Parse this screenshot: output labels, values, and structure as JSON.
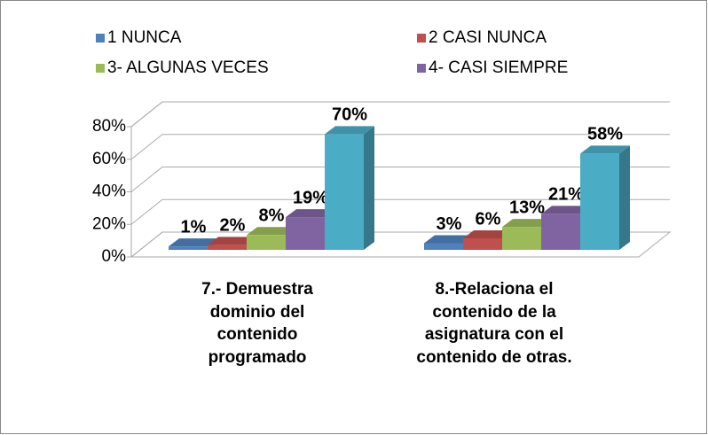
{
  "chart_data": {
    "type": "bar3d",
    "categories": [
      "7.- Demuestra dominio del contenido programado",
      "8.-Relaciona el contenido de la asignatura con el contenido de otras."
    ],
    "series": [
      {
        "name": "1 NUNCA",
        "color": "#4f81bd",
        "values": [
          1,
          3
        ],
        "value_labels": [
          "1%",
          "3%"
        ]
      },
      {
        "name": "2 CASI NUNCA",
        "color": "#c0504d",
        "values": [
          2,
          6
        ],
        "value_labels": [
          "2%",
          "6%"
        ]
      },
      {
        "name": "3- ALGUNAS VECES",
        "color": "#9bbb59",
        "values": [
          8,
          13
        ],
        "value_labels": [
          "8%",
          "13%"
        ]
      },
      {
        "name": "4- CASI SIEMPRE",
        "color": "#8064a2",
        "values": [
          19,
          21
        ],
        "value_labels": [
          "19%",
          "21%"
        ]
      },
      {
        "color": "#4bacc6",
        "values": [
          70,
          58
        ],
        "value_labels": [
          "70%",
          "58%"
        ]
      }
    ],
    "ylim": [
      0,
      80
    ],
    "yticks": [
      {
        "value": 0,
        "label": "0%"
      },
      {
        "value": 20,
        "label": "20%"
      },
      {
        "value": 40,
        "label": "40%"
      },
      {
        "value": 60,
        "label": "60%"
      },
      {
        "value": 80,
        "label": "80%"
      }
    ],
    "grid": true
  }
}
